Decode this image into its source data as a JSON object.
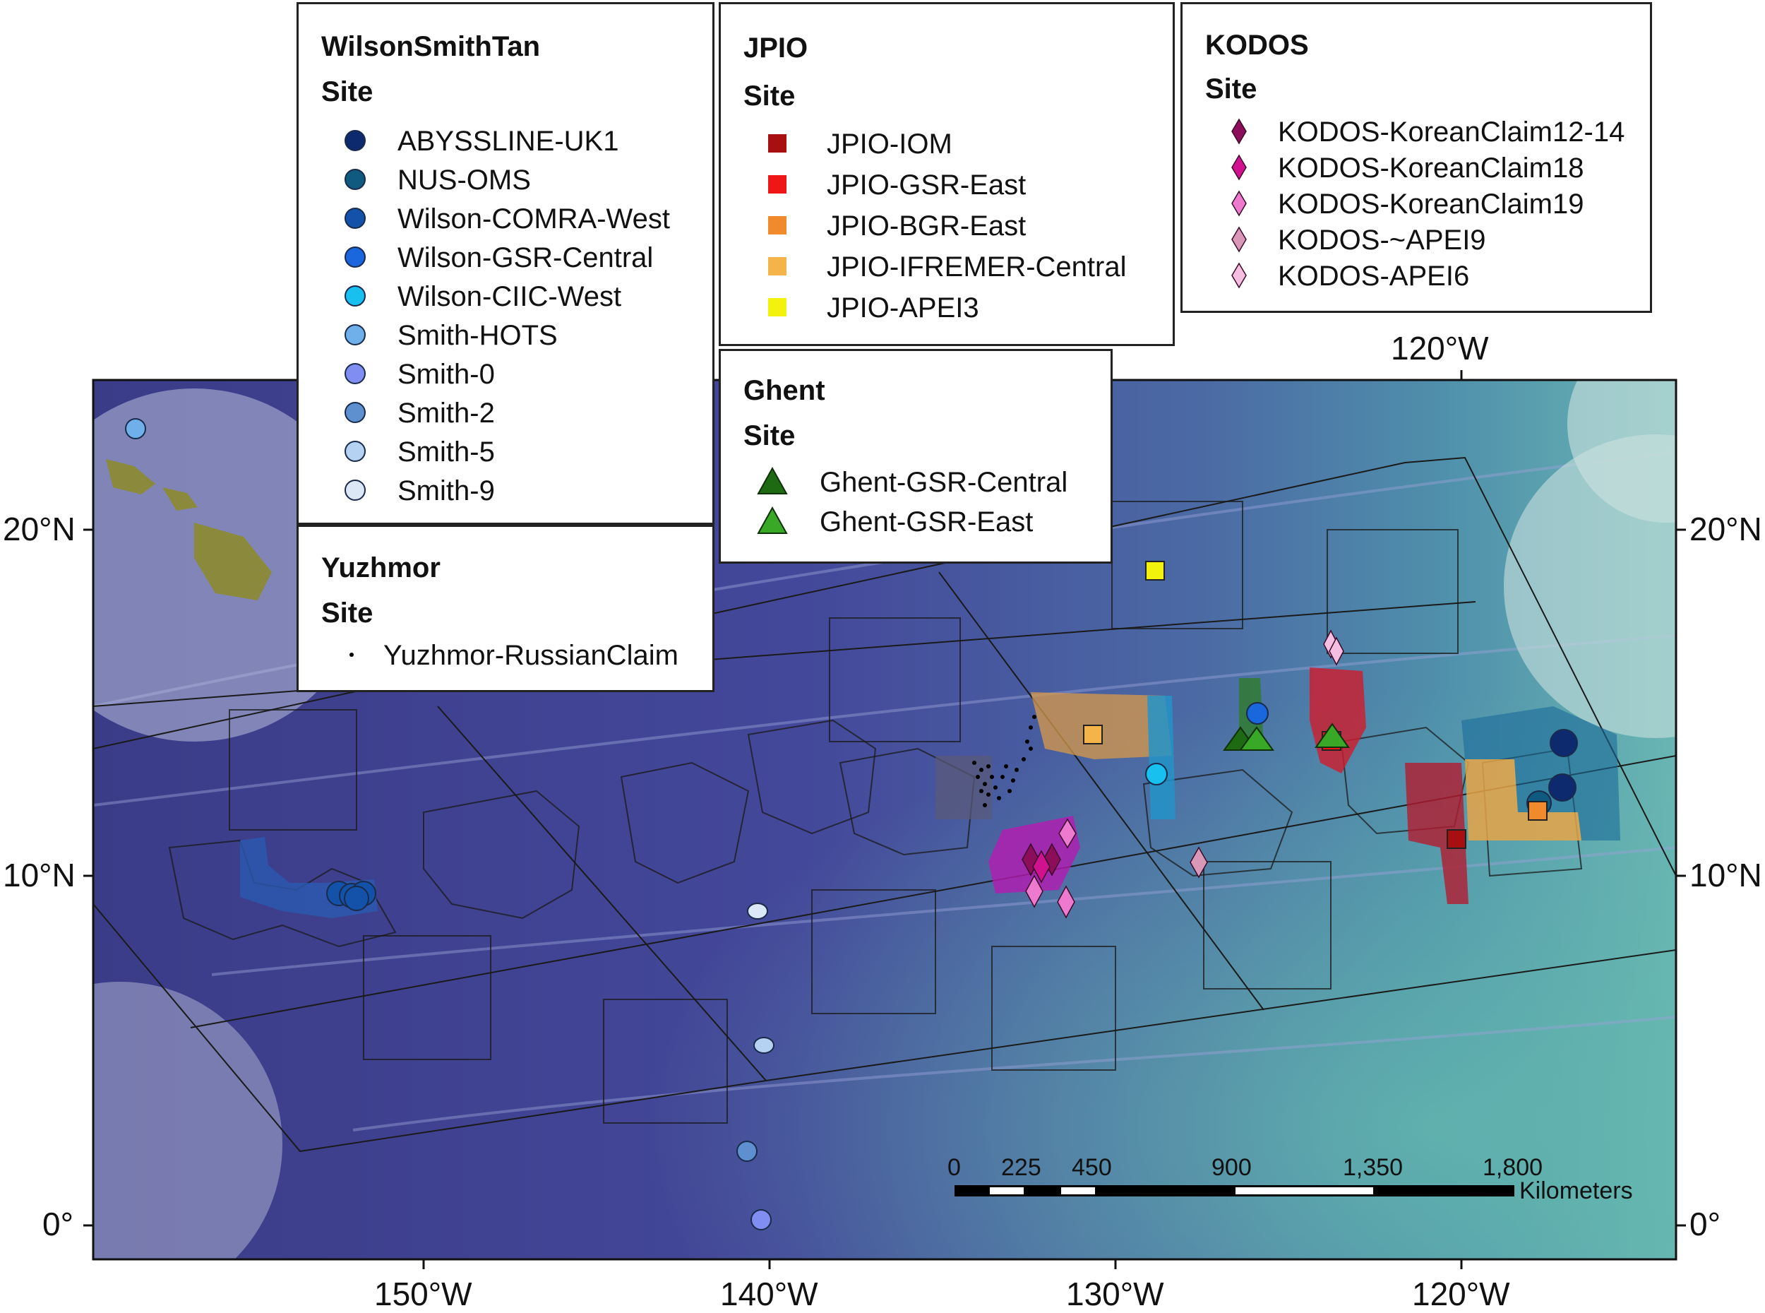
{
  "axes": {
    "bottom_lon_labels": [
      "150°W",
      "140°W",
      "130°W",
      "120°W"
    ],
    "top_lon_labels": [
      "120°W"
    ],
    "left_lat_labels": [
      "20°N",
      "10°N",
      "0°"
    ],
    "right_lat_labels": [
      "20°N",
      "10°N",
      "0°"
    ]
  },
  "legends": {
    "wilson": {
      "title": "WilsonSmithTan",
      "subtitle": "Site",
      "items": [
        {
          "label": "ABYSSLINE-UK1",
          "color": "#0e2a6e",
          "shape": "circle"
        },
        {
          "label": "NUS-OMS",
          "color": "#0f5a7e",
          "shape": "circle"
        },
        {
          "label": "Wilson-COMRA-West",
          "color": "#1352a8",
          "shape": "circle"
        },
        {
          "label": "Wilson-GSR-Central",
          "color": "#1a66dd",
          "shape": "circle"
        },
        {
          "label": "Wilson-CIIC-West",
          "color": "#18c0f0",
          "shape": "circle"
        },
        {
          "label": "Smith-HOTS",
          "color": "#6fb0ea",
          "shape": "circle"
        },
        {
          "label": "Smith-0",
          "color": "#7f8ef0",
          "shape": "circle"
        },
        {
          "label": "Smith-2",
          "color": "#5e8fcf",
          "shape": "circle"
        },
        {
          "label": "Smith-5",
          "color": "#b5d2f3",
          "shape": "circle"
        },
        {
          "label": "Smith-9",
          "color": "#dde8f7",
          "shape": "circle"
        }
      ]
    },
    "yuzhmor": {
      "title": "Yuzhmor",
      "subtitle": "Site",
      "items": [
        {
          "label": "Yuzhmor-RussianClaim",
          "color": "#000000",
          "shape": "dot"
        }
      ]
    },
    "jpio": {
      "title": "JPIO",
      "subtitle": "Site",
      "items": [
        {
          "label": "JPIO-IOM",
          "color": "#a80f10",
          "shape": "square"
        },
        {
          "label": "JPIO-GSR-East",
          "color": "#ee1616",
          "shape": "square"
        },
        {
          "label": "JPIO-BGR-East",
          "color": "#f08a2c",
          "shape": "square"
        },
        {
          "label": "JPIO-IFREMER-Central",
          "color": "#f5b44a",
          "shape": "square"
        },
        {
          "label": "JPIO-APEI3",
          "color": "#f2f20c",
          "shape": "square"
        }
      ]
    },
    "ghent": {
      "title": "Ghent",
      "subtitle": "Site",
      "items": [
        {
          "label": "Ghent-GSR-Central",
          "color": "#1e6a12",
          "shape": "triangle"
        },
        {
          "label": "Ghent-GSR-East",
          "color": "#39a826",
          "shape": "triangle"
        }
      ]
    },
    "kodos": {
      "title": "KODOS",
      "subtitle": "Site",
      "items": [
        {
          "label": "KODOS-KoreanClaim12-14",
          "color": "#8c0e5a",
          "shape": "diamond"
        },
        {
          "label": "KODOS-KoreanClaim18",
          "color": "#d0128e",
          "shape": "diamond"
        },
        {
          "label": "KODOS-KoreanClaim19",
          "color": "#ee7ad0",
          "shape": "diamond"
        },
        {
          "label": "KODOS-~APEI9",
          "color": "#d998b8",
          "shape": "diamond"
        },
        {
          "label": "KODOS-APEI6",
          "color": "#f6bfe1",
          "shape": "diamond"
        }
      ]
    }
  },
  "scale_bar": {
    "ticks": [
      "0",
      "225",
      "450",
      "900",
      "1,350",
      "1,800"
    ],
    "unit": "Kilometers"
  },
  "colors": {
    "ocean_deep": "#3d3f8c",
    "ocean_mid": "#4a5ea0",
    "ocean_shallow": "#5fa3ad",
    "land": "#7a8a3a"
  }
}
